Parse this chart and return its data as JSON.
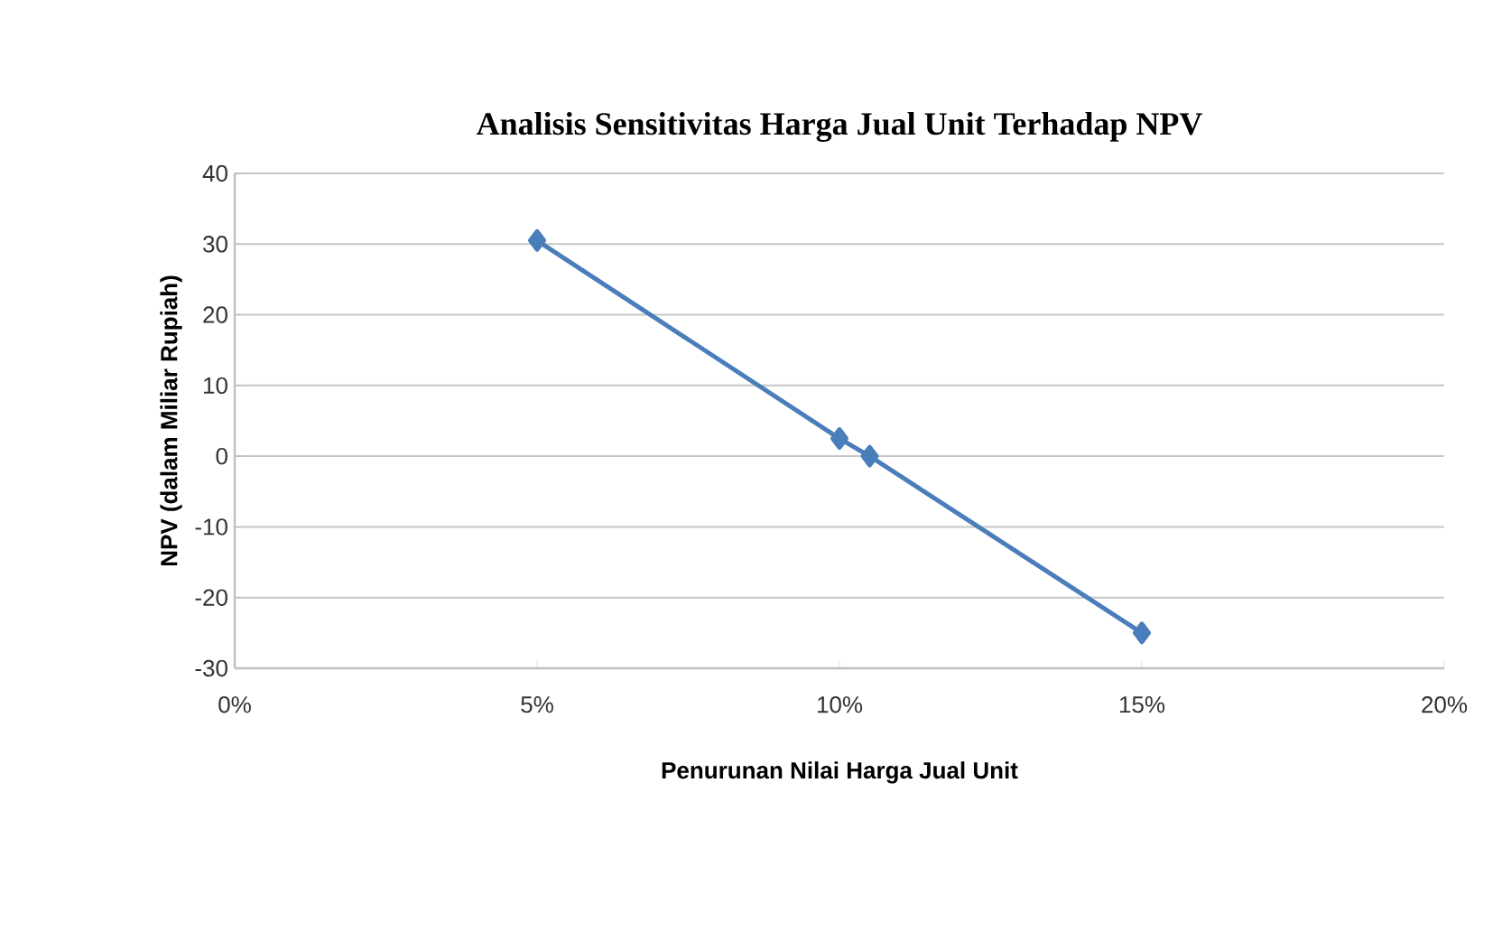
{
  "chart_data": {
    "type": "line",
    "title": "Analisis Sensitivitas Harga Jual Unit Terhadap NPV",
    "xlabel": "Penurunan Nilai Harga Jual Unit",
    "ylabel": "NPV (dalam Miliar Rupiah)",
    "x": [
      5,
      10,
      10.5,
      15
    ],
    "series": [
      {
        "color": "#4a7ebb",
        "values": [
          30.5,
          2.5,
          0,
          -25
        ]
      }
    ],
    "xlim": [
      0,
      20
    ],
    "ylim": [
      -30,
      40
    ],
    "xticks": [
      {
        "value": 0,
        "label": "0%"
      },
      {
        "value": 5,
        "label": "5%"
      },
      {
        "value": 10,
        "label": "10%"
      },
      {
        "value": 15,
        "label": "15%"
      },
      {
        "value": 20,
        "label": "20%"
      }
    ],
    "yticks": [
      -30,
      -20,
      -10,
      0,
      10,
      20,
      30,
      40
    ],
    "grid": "y",
    "marker": "diamond",
    "line_style": "solid"
  }
}
